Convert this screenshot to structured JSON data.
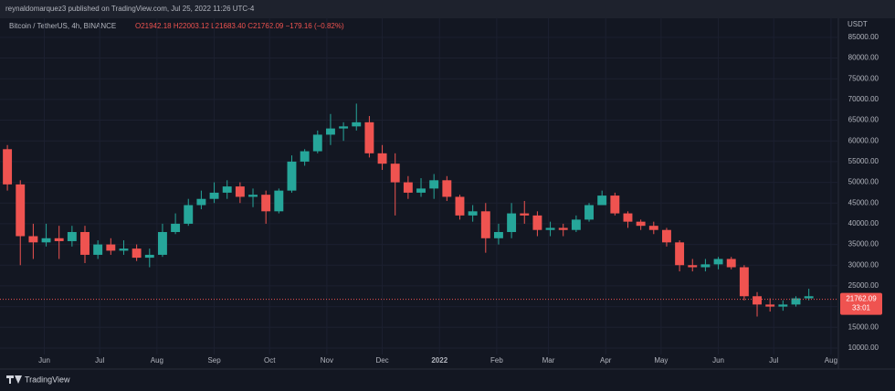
{
  "header": "reynaldomarquez3 published on TradingView.com, Jul 25, 2022 11:26 UTC-4",
  "brand": "TradingView",
  "chart_data": {
    "type": "candlestick",
    "symbol": "Bitcoin / TetherUS, 4h, BINANCE",
    "ohlc": "O21942.18 H22003.12 L21683.40 C21762.09 −179.16 (−0.82%)",
    "currency": "USDT",
    "last_price": 21762.09,
    "countdown": "33:01",
    "up_color": "#26a69a",
    "down_color": "#ef5350",
    "grid": true,
    "xlim": [
      -24,
      430
    ],
    "xticks": [
      {
        "value": 0,
        "label": "Jun"
      },
      {
        "value": 30,
        "label": "Jul"
      },
      {
        "value": 61,
        "label": "Aug"
      },
      {
        "value": 92,
        "label": "Sep"
      },
      {
        "value": 122,
        "label": "Oct"
      },
      {
        "value": 153,
        "label": "Nov"
      },
      {
        "value": 183,
        "label": "Dec"
      },
      {
        "value": 214,
        "label": "2022"
      },
      {
        "value": 245,
        "label": "Feb"
      },
      {
        "value": 273,
        "label": "Mar"
      },
      {
        "value": 304,
        "label": "Apr"
      },
      {
        "value": 334,
        "label": "May"
      },
      {
        "value": 365,
        "label": "Jun"
      },
      {
        "value": 395,
        "label": "Jul"
      },
      {
        "value": 426,
        "label": "Aug"
      }
    ],
    "ylim": [
      5800,
      89600
    ],
    "yticks": [
      {
        "value": 10000,
        "label": "10000.00"
      },
      {
        "value": 15000,
        "label": "15000.00"
      },
      {
        "value": 20000,
        "label": "20000.00"
      },
      {
        "value": 25000,
        "label": "25000.00"
      },
      {
        "value": 30000,
        "label": "30000.00"
      },
      {
        "value": 35000,
        "label": "35000.00"
      },
      {
        "value": 40000,
        "label": "40000.00"
      },
      {
        "value": 45000,
        "label": "45000.00"
      },
      {
        "value": 50000,
        "label": "50000.00"
      },
      {
        "value": 55000,
        "label": "55000.00"
      },
      {
        "value": 60000,
        "label": "60000.00"
      },
      {
        "value": 65000,
        "label": "65000.00"
      },
      {
        "value": 70000,
        "label": "70000.00"
      },
      {
        "value": 75000,
        "label": "75000.00"
      },
      {
        "value": 80000,
        "label": "80000.00"
      },
      {
        "value": 85000,
        "label": "85000.00"
      }
    ],
    "x": [
      -20,
      -13,
      -6,
      1,
      8,
      15,
      22,
      29,
      36,
      43,
      50,
      57,
      64,
      71,
      78,
      85,
      92,
      99,
      106,
      113,
      120,
      127,
      134,
      141,
      148,
      155,
      162,
      169,
      176,
      183,
      190,
      197,
      204,
      211,
      218,
      225,
      232,
      239,
      246,
      253,
      260,
      267,
      274,
      281,
      288,
      295,
      302,
      309,
      316,
      323,
      330,
      337,
      344,
      351,
      358,
      365,
      372,
      379,
      386,
      393,
      400,
      407,
      414
    ],
    "open": [
      58000,
      49500,
      37000,
      35500,
      36500,
      35800,
      38000,
      32500,
      35000,
      33500,
      34000,
      31800,
      32500,
      38000,
      40000,
      44500,
      46000,
      47500,
      49000,
      46500,
      47000,
      43000,
      48000,
      55000,
      57500,
      61500,
      63000,
      63500,
      64500,
      57000,
      54500,
      50000,
      47500,
      48500,
      50500,
      46500,
      42000,
      43000,
      36500,
      38000,
      42500,
      42000,
      38500,
      39000,
      38500,
      41000,
      44500,
      46800,
      42500,
      40500,
      39500,
      38500,
      35500,
      30000,
      29500,
      30200,
      31500,
      29500,
      22500,
      20500,
      20000,
      20500,
      22000
    ],
    "high": [
      59000,
      50500,
      40000,
      40000,
      39500,
      39500,
      39500,
      36000,
      36500,
      36000,
      35000,
      34000,
      40000,
      42500,
      46000,
      48000,
      50000,
      50500,
      50000,
      48500,
      48000,
      48500,
      56500,
      58000,
      62500,
      66500,
      64500,
      69000,
      66000,
      59000,
      57000,
      51500,
      51000,
      52000,
      51500,
      47000,
      44500,
      45000,
      40000,
      45000,
      45500,
      43000,
      40500,
      40000,
      42000,
      45000,
      48000,
      47500,
      43000,
      41000,
      40500,
      39000,
      36000,
      31500,
      31500,
      32000,
      32000,
      30000,
      23500,
      22000,
      21500,
      22500,
      24300
    ],
    "low": [
      48000,
      30000,
      31500,
      34500,
      31500,
      34500,
      30500,
      31500,
      32500,
      32500,
      31000,
      29500,
      32000,
      37500,
      39500,
      43500,
      45000,
      46000,
      45000,
      44000,
      40000,
      42500,
      47500,
      54000,
      57000,
      59000,
      60000,
      62500,
      56000,
      53000,
      42000,
      46000,
      46500,
      46000,
      45500,
      41000,
      40500,
      33000,
      35000,
      36500,
      40000,
      37000,
      37000,
      37000,
      38000,
      40500,
      44500,
      42000,
      39000,
      38500,
      37500,
      34500,
      28500,
      28500,
      28500,
      29000,
      29000,
      21500,
      17600,
      18800,
      19000,
      20000,
      21500
    ],
    "close": [
      49500,
      37000,
      35500,
      36500,
      35800,
      38000,
      32500,
      35000,
      33500,
      34000,
      31800,
      32500,
      38000,
      40000,
      44500,
      46000,
      47500,
      49000,
      46500,
      47000,
      43000,
      48000,
      55000,
      57500,
      61500,
      63000,
      63500,
      64500,
      57000,
      54500,
      50000,
      47500,
      48500,
      50500,
      46500,
      42000,
      43000,
      36500,
      38000,
      42500,
      42000,
      38500,
      39000,
      38500,
      41000,
      44500,
      46800,
      42500,
      40500,
      39500,
      38500,
      35500,
      30000,
      29500,
      30200,
      31500,
      29500,
      22500,
      20500,
      20000,
      20500,
      22000,
      22500
    ]
  }
}
